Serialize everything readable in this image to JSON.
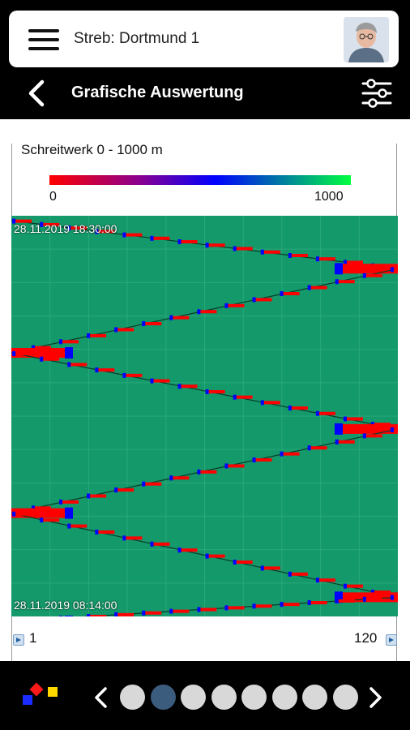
{
  "header": {
    "title": "Streb: Dortmund 1",
    "menu_icon": "hamburger-icon",
    "avatar_icon": "user-avatar"
  },
  "nav": {
    "back_icon": "chevron-left-icon",
    "title": "Grafische Auswertung",
    "settings_icon": "sliders-icon"
  },
  "chart": {
    "title": "Schreitwerk 0 - 1000 m",
    "colorbar_min": "0",
    "colorbar_max": "1000",
    "time_top": "28.11.2019 18:30:00",
    "time_bottom": "28.11.2019 08:14:00",
    "x_min": "1",
    "x_max": "120",
    "colors": {
      "background": "#13996a",
      "low": "#ff0000",
      "mid": "#0000ff",
      "high": "#00ff40"
    }
  },
  "chart_data": {
    "type": "heatmap",
    "title": "Schreitwerk 0 - 1000 m",
    "colorscale": {
      "min": 0,
      "max": 1000,
      "colors": [
        "#ff0000",
        "#0000ff",
        "#00ff40"
      ]
    },
    "x_range": [
      1,
      120
    ],
    "y_range": [
      "28.11.2019 08:14:00",
      "28.11.2019 18:30:00"
    ],
    "sweeps": [
      {
        "from_x": 1,
        "to_x": 120,
        "y_start": 0.0,
        "y_end": 0.12
      },
      {
        "from_x": 120,
        "to_x": 1,
        "y_start": 0.12,
        "y_end": 0.33
      },
      {
        "from_x": 1,
        "to_x": 120,
        "y_start": 0.33,
        "y_end": 0.52
      },
      {
        "from_x": 120,
        "to_x": 1,
        "y_start": 0.52,
        "y_end": 0.73
      },
      {
        "from_x": 1,
        "to_x": 120,
        "y_start": 0.73,
        "y_end": 0.94
      },
      {
        "from_x": 120,
        "to_x": 1,
        "y_start": 0.94,
        "y_end": 1.0
      }
    ]
  },
  "footer": {
    "logo": "company-logo",
    "pages": 8,
    "active_page": 2
  }
}
